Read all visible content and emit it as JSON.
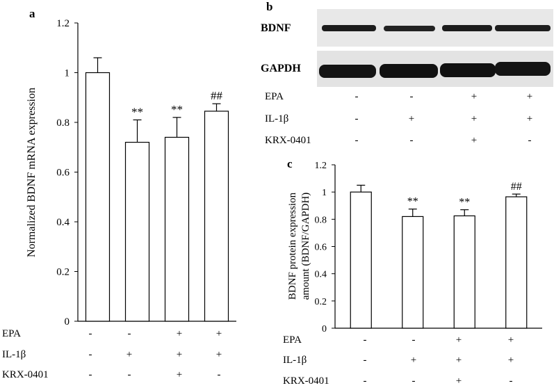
{
  "panels": {
    "a": {
      "label": "a"
    },
    "b": {
      "label": "b",
      "blots": [
        {
          "name": "BDNF"
        },
        {
          "name": "GAPDH"
        }
      ]
    },
    "c": {
      "label": "c"
    }
  },
  "treatments": {
    "rows": [
      {
        "label": "EPA",
        "values": [
          "-",
          "-",
          "+",
          "+"
        ]
      },
      {
        "label": "IL-1β",
        "values": [
          "-",
          "+",
          "+",
          "+"
        ]
      },
      {
        "label": "KRX-0401",
        "values": [
          "-",
          "-",
          "+",
          "-"
        ]
      }
    ]
  },
  "chart_data": [
    {
      "panel": "a",
      "type": "bar",
      "title": "",
      "xlabel": "",
      "ylabel": "Normalized BDNF mRNA expression",
      "ylim": [
        0,
        1.2
      ],
      "yticks": [
        0,
        0.2,
        0.4,
        0.6,
        0.8,
        1,
        1.2
      ],
      "ytick_labels": [
        "0",
        "0.2",
        "0.4",
        "0.6",
        "0.8",
        "1",
        "1.2"
      ],
      "grid": false,
      "bar_color": "#ffffff",
      "edge_color": "#000000",
      "values": [
        1.0,
        0.72,
        0.74,
        0.845
      ],
      "errors": [
        0.06,
        0.09,
        0.08,
        0.03
      ],
      "annotations": [
        "",
        "**",
        "**",
        "##"
      ]
    },
    {
      "panel": "c",
      "type": "bar",
      "title": "",
      "xlabel": "",
      "ylabel": [
        "BDNF protein expression",
        "amount (BDNF/GAPDH)"
      ],
      "ylim": [
        0,
        1.2
      ],
      "yticks": [
        0,
        0.2,
        0.4,
        0.6,
        0.8,
        1,
        1.2
      ],
      "ytick_labels": [
        "0",
        "0.2",
        "0.4",
        "0.6",
        "0.8",
        "1",
        "1.2"
      ],
      "grid": false,
      "bar_color": "#ffffff",
      "edge_color": "#000000",
      "values": [
        1.0,
        0.82,
        0.825,
        0.965
      ],
      "errors": [
        0.05,
        0.055,
        0.045,
        0.02
      ],
      "annotations": [
        "",
        "**",
        "**",
        "##"
      ]
    }
  ]
}
